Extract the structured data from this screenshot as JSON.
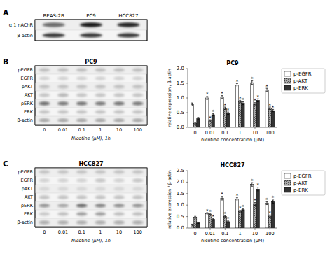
{
  "chart_data": [
    {
      "type": "blot",
      "annotations": [
        "A"
      ],
      "categories": [
        "BEAS-2B",
        "PC9",
        "HCC827"
      ],
      "rows": [
        "α 1 nAChR",
        "β-actin"
      ],
      "values": [
        [
          0.55,
          0.9,
          0.85
        ],
        [
          0.75,
          0.75,
          0.75
        ]
      ]
    },
    {
      "type": "blot",
      "annotations": [
        "B"
      ],
      "title": "PC9",
      "categories": [
        "0",
        "0.01",
        "0.1",
        "1",
        "10",
        "100"
      ],
      "xlabel": "Nicotine (μM), 1h",
      "rows": [
        "pEGFR",
        "EGFR",
        "pAKT",
        "AKT",
        "pERK",
        "ERK",
        "β-actin"
      ],
      "values": [
        [
          0.2,
          0.2,
          0.2,
          0.2,
          0.2,
          0.2
        ],
        [
          0.15,
          0.15,
          0.15,
          0.15,
          0.15,
          0.15
        ],
        [
          0.2,
          0.2,
          0.2,
          0.2,
          0.2,
          0.2
        ],
        [
          0.2,
          0.25,
          0.2,
          0.2,
          0.2,
          0.2
        ],
        [
          0.55,
          0.5,
          0.52,
          0.5,
          0.52,
          0.5
        ],
        [
          0.2,
          0.2,
          0.2,
          0.2,
          0.2,
          0.2
        ],
        [
          0.3,
          0.3,
          0.3,
          0.3,
          0.3,
          0.3
        ]
      ]
    },
    {
      "type": "bar",
      "title": "PC9",
      "categories": [
        "0",
        "0.01",
        "0.1",
        "1",
        "10",
        "100"
      ],
      "xlabel": "nicotine concentration (μM)",
      "ylabel": "relative expression / β-actin",
      "ylim": [
        0,
        2.0
      ],
      "yticks": [
        {
          "value": 0,
          "label": "0.0"
        },
        0.5,
        {
          "value": 1,
          "label": "1.0"
        },
        1.5,
        {
          "value": 2,
          "label": "2.0"
        }
      ],
      "legend": "right",
      "series": [
        {
          "name": "p-EGFR",
          "color": "#ffffff",
          "values": [
            0.78,
            1.0,
            1.03,
            1.43,
            1.52,
            1.28
          ],
          "errors": [
            0.05,
            0.05,
            0.05,
            0.06,
            0.06,
            0.05
          ],
          "annotations": [
            null,
            "*",
            "*",
            "*",
            "*",
            "*"
          ]
        },
        {
          "name": "p-AKT",
          "color": "#aaaaaa",
          "values": [
            0.13,
            0.22,
            0.65,
            0.88,
            0.8,
            0.65
          ],
          "errors": [
            0.03,
            0.04,
            0.04,
            0.04,
            0.04,
            0.04
          ],
          "annotations": [
            null,
            "*",
            "*",
            "*",
            "*",
            "*"
          ]
        },
        {
          "name": "p-ERK",
          "color": "#333333",
          "values": [
            0.3,
            0.43,
            0.48,
            0.82,
            0.92,
            0.57
          ],
          "errors": [
            0.04,
            0.04,
            0.04,
            0.05,
            0.05,
            0.04
          ],
          "annotations": [
            null,
            "*",
            "*",
            "*",
            "*",
            "*"
          ]
        }
      ]
    },
    {
      "type": "blot",
      "annotations": [
        "C"
      ],
      "title": "HCC827",
      "categories": [
        "0",
        "0.01",
        "0.1",
        "1",
        "10",
        "100"
      ],
      "xlabel": "Nicotine (μM), 1h",
      "rows": [
        "pEGFR",
        "EGFR",
        "pAKT",
        "AKT",
        "pERK",
        "ERK",
        "β-actin"
      ],
      "values": [
        [
          0.18,
          0.18,
          0.18,
          0.18,
          0.18,
          0.18
        ],
        [
          0.15,
          0.15,
          0.15,
          0.2,
          0.15,
          0.2
        ],
        [
          0.1,
          0.1,
          0.1,
          0.1,
          0.1,
          0.1
        ],
        [
          0.22,
          0.22,
          0.22,
          0.22,
          0.22,
          0.22
        ],
        [
          0.38,
          0.3,
          0.55,
          0.45,
          0.4,
          0.38
        ],
        [
          0.18,
          0.22,
          0.35,
          0.35,
          0.22,
          0.22
        ],
        [
          0.28,
          0.28,
          0.28,
          0.28,
          0.28,
          0.28
        ]
      ]
    },
    {
      "type": "bar",
      "title": "HCC827",
      "categories": [
        "0",
        "0.01",
        "0.1",
        "1",
        "10",
        "100"
      ],
      "xlabel": "nicotine concentration (μM)",
      "ylabel": "relative expression / β-actin",
      "ylim": [
        0,
        2.5
      ],
      "yticks": [
        {
          "value": 0,
          "label": "0.0"
        },
        0.5,
        {
          "value": 1,
          "label": "1.0"
        },
        1.5,
        {
          "value": 2,
          "label": "2.0"
        },
        2.5
      ],
      "legend": "right",
      "series": [
        {
          "name": "p-EGFR",
          "color": "#ffffff",
          "values": [
            0.13,
            0.62,
            1.3,
            1.25,
            1.9,
            1.08
          ],
          "errors": [
            0.04,
            0.05,
            0.08,
            0.07,
            0.08,
            0.06
          ],
          "annotations": [
            null,
            "*",
            "*",
            "*",
            "*",
            "*"
          ]
        },
        {
          "name": "p-AKT",
          "color": "#aaaaaa",
          "values": [
            0.47,
            0.6,
            0.5,
            0.72,
            1.05,
            0.52
          ],
          "errors": [
            0.04,
            0.04,
            0.04,
            0.05,
            0.06,
            0.05
          ],
          "annotations": [
            null,
            "*",
            "*",
            "*",
            "*",
            "*"
          ]
        },
        {
          "name": "p-ERK",
          "color": "#333333",
          "values": [
            0.23,
            0.38,
            0.28,
            0.8,
            1.7,
            1.15
          ],
          "errors": [
            0.03,
            0.04,
            0.03,
            0.05,
            0.08,
            0.07
          ],
          "annotations": [
            null,
            "*",
            "*",
            "*",
            "*",
            "*"
          ]
        }
      ]
    }
  ]
}
